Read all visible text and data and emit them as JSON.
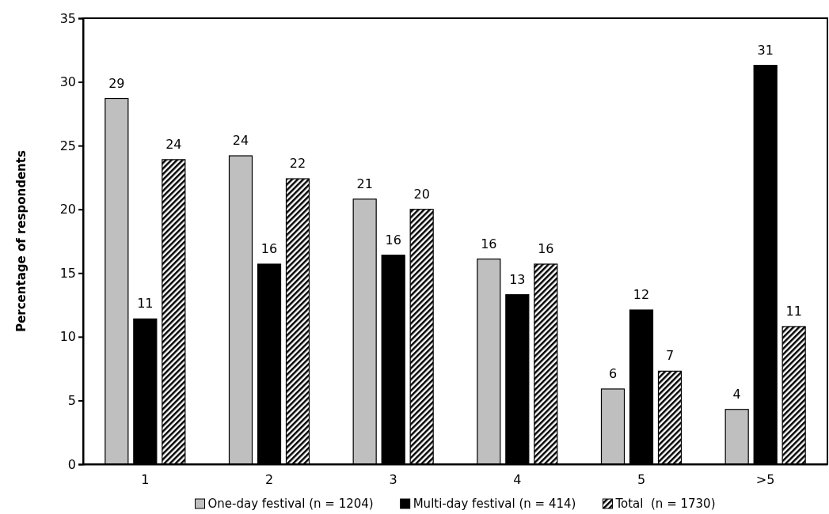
{
  "chart_data": {
    "type": "bar",
    "ylabel": "Percentage of respondents",
    "categories": [
      "1",
      "2",
      "3",
      "4",
      "5",
      ">5"
    ],
    "ylim": [
      0,
      35
    ],
    "yticks": [
      0,
      5,
      10,
      15,
      20,
      25,
      30,
      35
    ],
    "legend": "bottom",
    "series": [
      {
        "name": "One-day festival (n = 1204)",
        "color": "#bfbfbf",
        "values": [
          28.7,
          24.2,
          20.8,
          16.1,
          5.9,
          4.3
        ],
        "value_labels": [
          "29",
          "24",
          "21",
          "16",
          "6",
          "4"
        ]
      },
      {
        "name": "Multi-day festival (n = 414)",
        "color": "#000000",
        "values": [
          11.4,
          15.7,
          16.4,
          13.3,
          12.1,
          31.3
        ],
        "value_labels": [
          "11",
          "16",
          "16",
          "13",
          "12",
          "31"
        ]
      },
      {
        "name": "Total  (n = 1730)",
        "color": "#000000",
        "values": [
          23.9,
          22.4,
          20.0,
          15.7,
          7.3,
          10.8
        ],
        "value_labels": [
          "24",
          "22",
          "20",
          "16",
          "7",
          "11"
        ]
      }
    ]
  }
}
